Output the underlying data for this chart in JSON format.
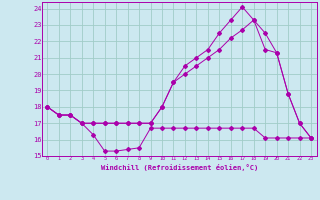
{
  "xlabel": "Windchill (Refroidissement éolien,°C)",
  "bg_color": "#cce8f0",
  "grid_color": "#a0ccc8",
  "line_color": "#aa00aa",
  "xlim": [
    -0.5,
    23.5
  ],
  "ylim": [
    15,
    24.4
  ],
  "yticks": [
    15,
    16,
    17,
    18,
    19,
    20,
    21,
    22,
    23,
    24
  ],
  "xticks": [
    0,
    1,
    2,
    3,
    4,
    5,
    6,
    7,
    8,
    9,
    10,
    11,
    12,
    13,
    14,
    15,
    16,
    17,
    18,
    19,
    20,
    21,
    22,
    23
  ],
  "line1_x": [
    0,
    1,
    2,
    3,
    4,
    5,
    6,
    7,
    8,
    9,
    10,
    11,
    12,
    13,
    14,
    15,
    16,
    17,
    18,
    19,
    20,
    21,
    22,
    23
  ],
  "line1_y": [
    18,
    17.5,
    17.5,
    17,
    16.3,
    15.3,
    15.3,
    15.4,
    15.5,
    16.7,
    16.7,
    16.7,
    16.7,
    16.7,
    16.7,
    16.7,
    16.7,
    16.7,
    16.7,
    16.1,
    16.1,
    16.1,
    16.1,
    16.1
  ],
  "line2_x": [
    0,
    1,
    2,
    3,
    4,
    5,
    6,
    7,
    8,
    9,
    10,
    11,
    12,
    13,
    14,
    15,
    16,
    17,
    18,
    19,
    20,
    21,
    22,
    23
  ],
  "line2_y": [
    18,
    17.5,
    17.5,
    17,
    17,
    17,
    17,
    17,
    17,
    17,
    18,
    19.5,
    20,
    20.5,
    21,
    21.5,
    22.2,
    22.7,
    23.3,
    21.5,
    21.3,
    18.8,
    17,
    16.1
  ],
  "line3_x": [
    0,
    1,
    2,
    3,
    4,
    5,
    6,
    7,
    8,
    9,
    10,
    11,
    12,
    13,
    14,
    15,
    16,
    17,
    18,
    19,
    20,
    21,
    22,
    23
  ],
  "line3_y": [
    18,
    17.5,
    17.5,
    17,
    17,
    17,
    17,
    17,
    17,
    17,
    18,
    19.5,
    20.5,
    21,
    21.5,
    22.5,
    23.3,
    24.1,
    23.3,
    22.5,
    21.3,
    18.8,
    17,
    16.1
  ]
}
